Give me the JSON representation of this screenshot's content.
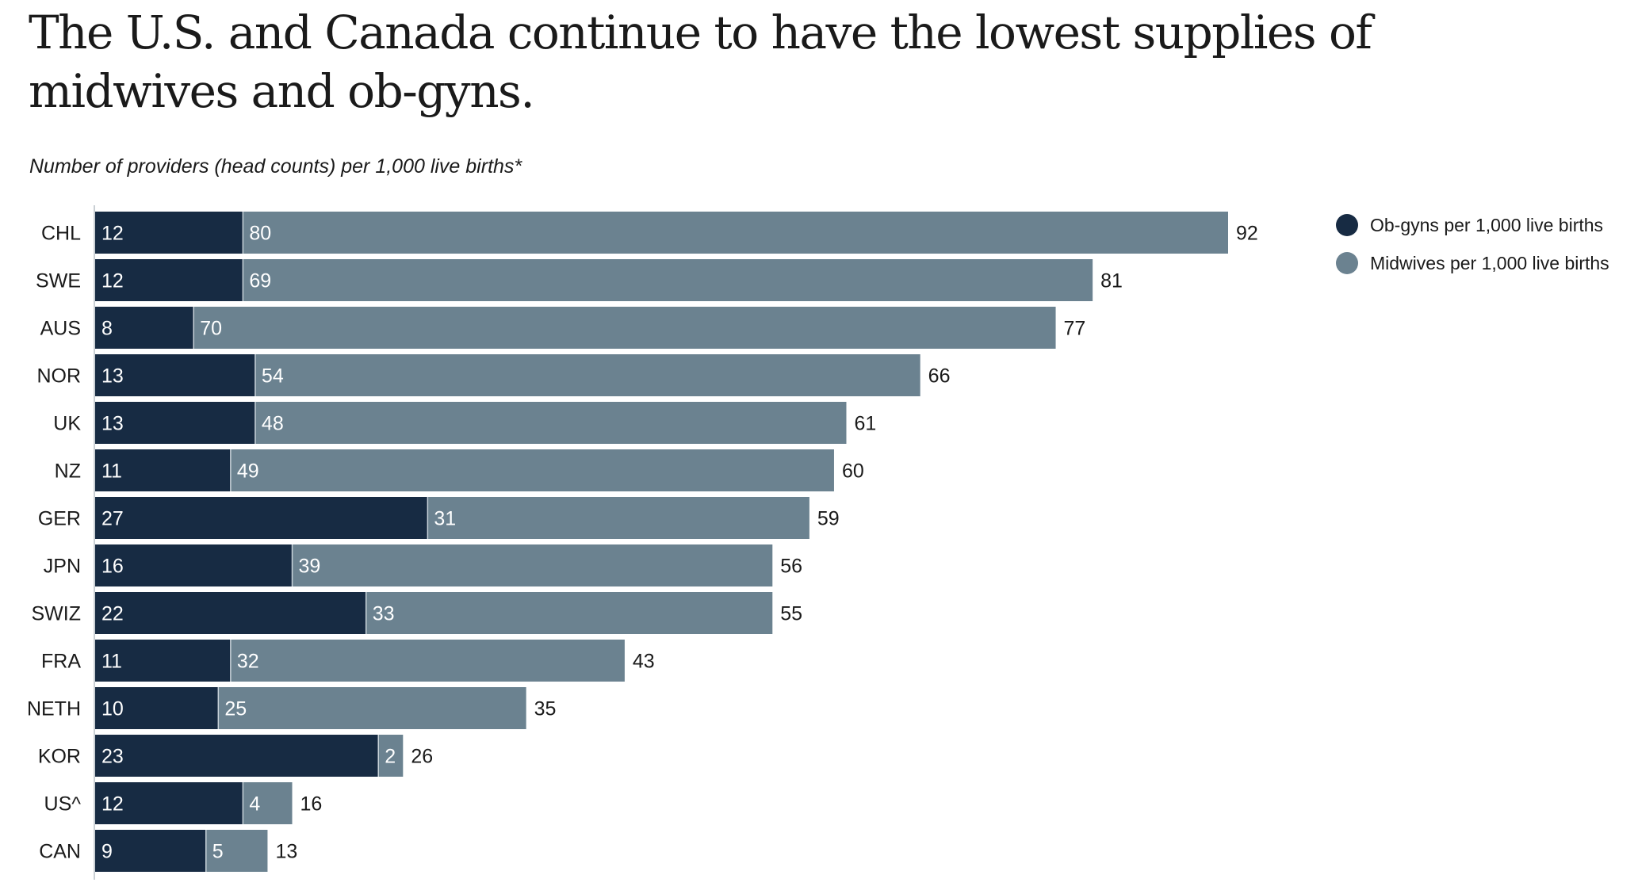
{
  "title": "The U.S. and Canada continue to have the lowest supplies of midwives and ob-gyns.",
  "chart_data": {
    "type": "bar",
    "orientation": "horizontal",
    "stacked": true,
    "subtitle": "Number of providers (head counts) per 1,000 live births*",
    "categories": [
      "CHL",
      "SWE",
      "AUS",
      "NOR",
      "UK",
      "NZ",
      "GER",
      "JPN",
      "SWIZ",
      "FRA",
      "NETH",
      "KOR",
      "US^",
      "CAN"
    ],
    "series": [
      {
        "name": "Ob-gyns per 1,000 live births",
        "color": "#172b43",
        "values": [
          12,
          12,
          8,
          13,
          13,
          11,
          27,
          16,
          22,
          11,
          10,
          23,
          12,
          9
        ]
      },
      {
        "name": "Midwives per 1,000 live births",
        "color": "#6b8290",
        "values": [
          80,
          69,
          70,
          54,
          48,
          49,
          31,
          39,
          33,
          32,
          25,
          2,
          4,
          5
        ]
      }
    ],
    "totals": [
      92,
      81,
      77,
      66,
      61,
      60,
      59,
      56,
      55,
      43,
      35,
      26,
      16,
      13
    ],
    "xlim": [
      0,
      92
    ],
    "legend_position": "top-right",
    "grid": false
  }
}
